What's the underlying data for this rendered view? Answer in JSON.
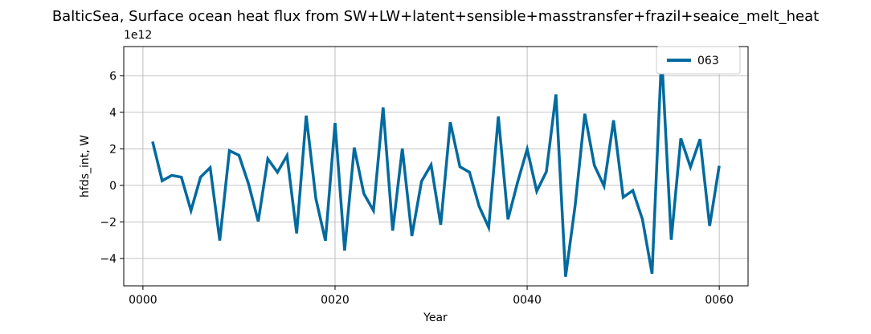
{
  "chart_data": {
    "type": "line",
    "title": "BalticSea, Surface ocean heat flux from SW+LW+latent+sensible+masstransfer+frazil+seaice_melt_heat",
    "xlabel": "Year",
    "ylabel": "hfds_int, W",
    "y_offset_label": "1e12",
    "xlim": [
      -2,
      63
    ],
    "ylim": [
      -5.5,
      7.6
    ],
    "xticks": [
      0,
      20,
      40,
      60
    ],
    "xtick_labels": [
      "0000",
      "0020",
      "0040",
      "0060"
    ],
    "yticks": [
      -4,
      -2,
      0,
      2,
      4,
      6
    ],
    "ytick_labels": [
      "−4",
      "−2",
      "0",
      "2",
      "4",
      "6"
    ],
    "grid": true,
    "legend_position": "top-right",
    "colors": {
      "series": "#026a9e"
    },
    "series": [
      {
        "name": "063",
        "x": [
          1,
          2,
          3,
          4,
          5,
          6,
          7,
          8,
          9,
          10,
          11,
          12,
          13,
          14,
          15,
          16,
          17,
          18,
          19,
          20,
          21,
          22,
          23,
          24,
          25,
          26,
          27,
          28,
          29,
          30,
          31,
          32,
          33,
          34,
          35,
          36,
          37,
          38,
          39,
          40,
          41,
          42,
          43,
          44,
          45,
          46,
          47,
          48,
          49,
          50,
          51,
          52,
          53,
          54,
          55,
          56,
          57,
          58,
          59,
          60
        ],
        "values": [
          2.4,
          0.25,
          0.55,
          0.45,
          -1.38,
          0.45,
          0.97,
          -3.02,
          1.9,
          1.65,
          0.07,
          -1.97,
          1.45,
          0.72,
          1.63,
          -2.63,
          3.82,
          -0.72,
          -3.03,
          3.42,
          -3.57,
          2.07,
          -0.45,
          -1.38,
          4.27,
          -2.48,
          2.02,
          -2.77,
          0.22,
          1.12,
          -2.16,
          3.46,
          1.02,
          0.72,
          -1.15,
          -2.3,
          3.77,
          -1.86,
          0.16,
          1.98,
          -0.32,
          0.75,
          4.98,
          -5.0,
          -1.1,
          3.92,
          1.1,
          -0.03,
          3.56,
          -0.65,
          -0.28,
          -1.85,
          -4.83,
          7.15,
          -2.98,
          2.57,
          1.0,
          2.53,
          -2.22,
          1.07
        ]
      }
    ]
  }
}
